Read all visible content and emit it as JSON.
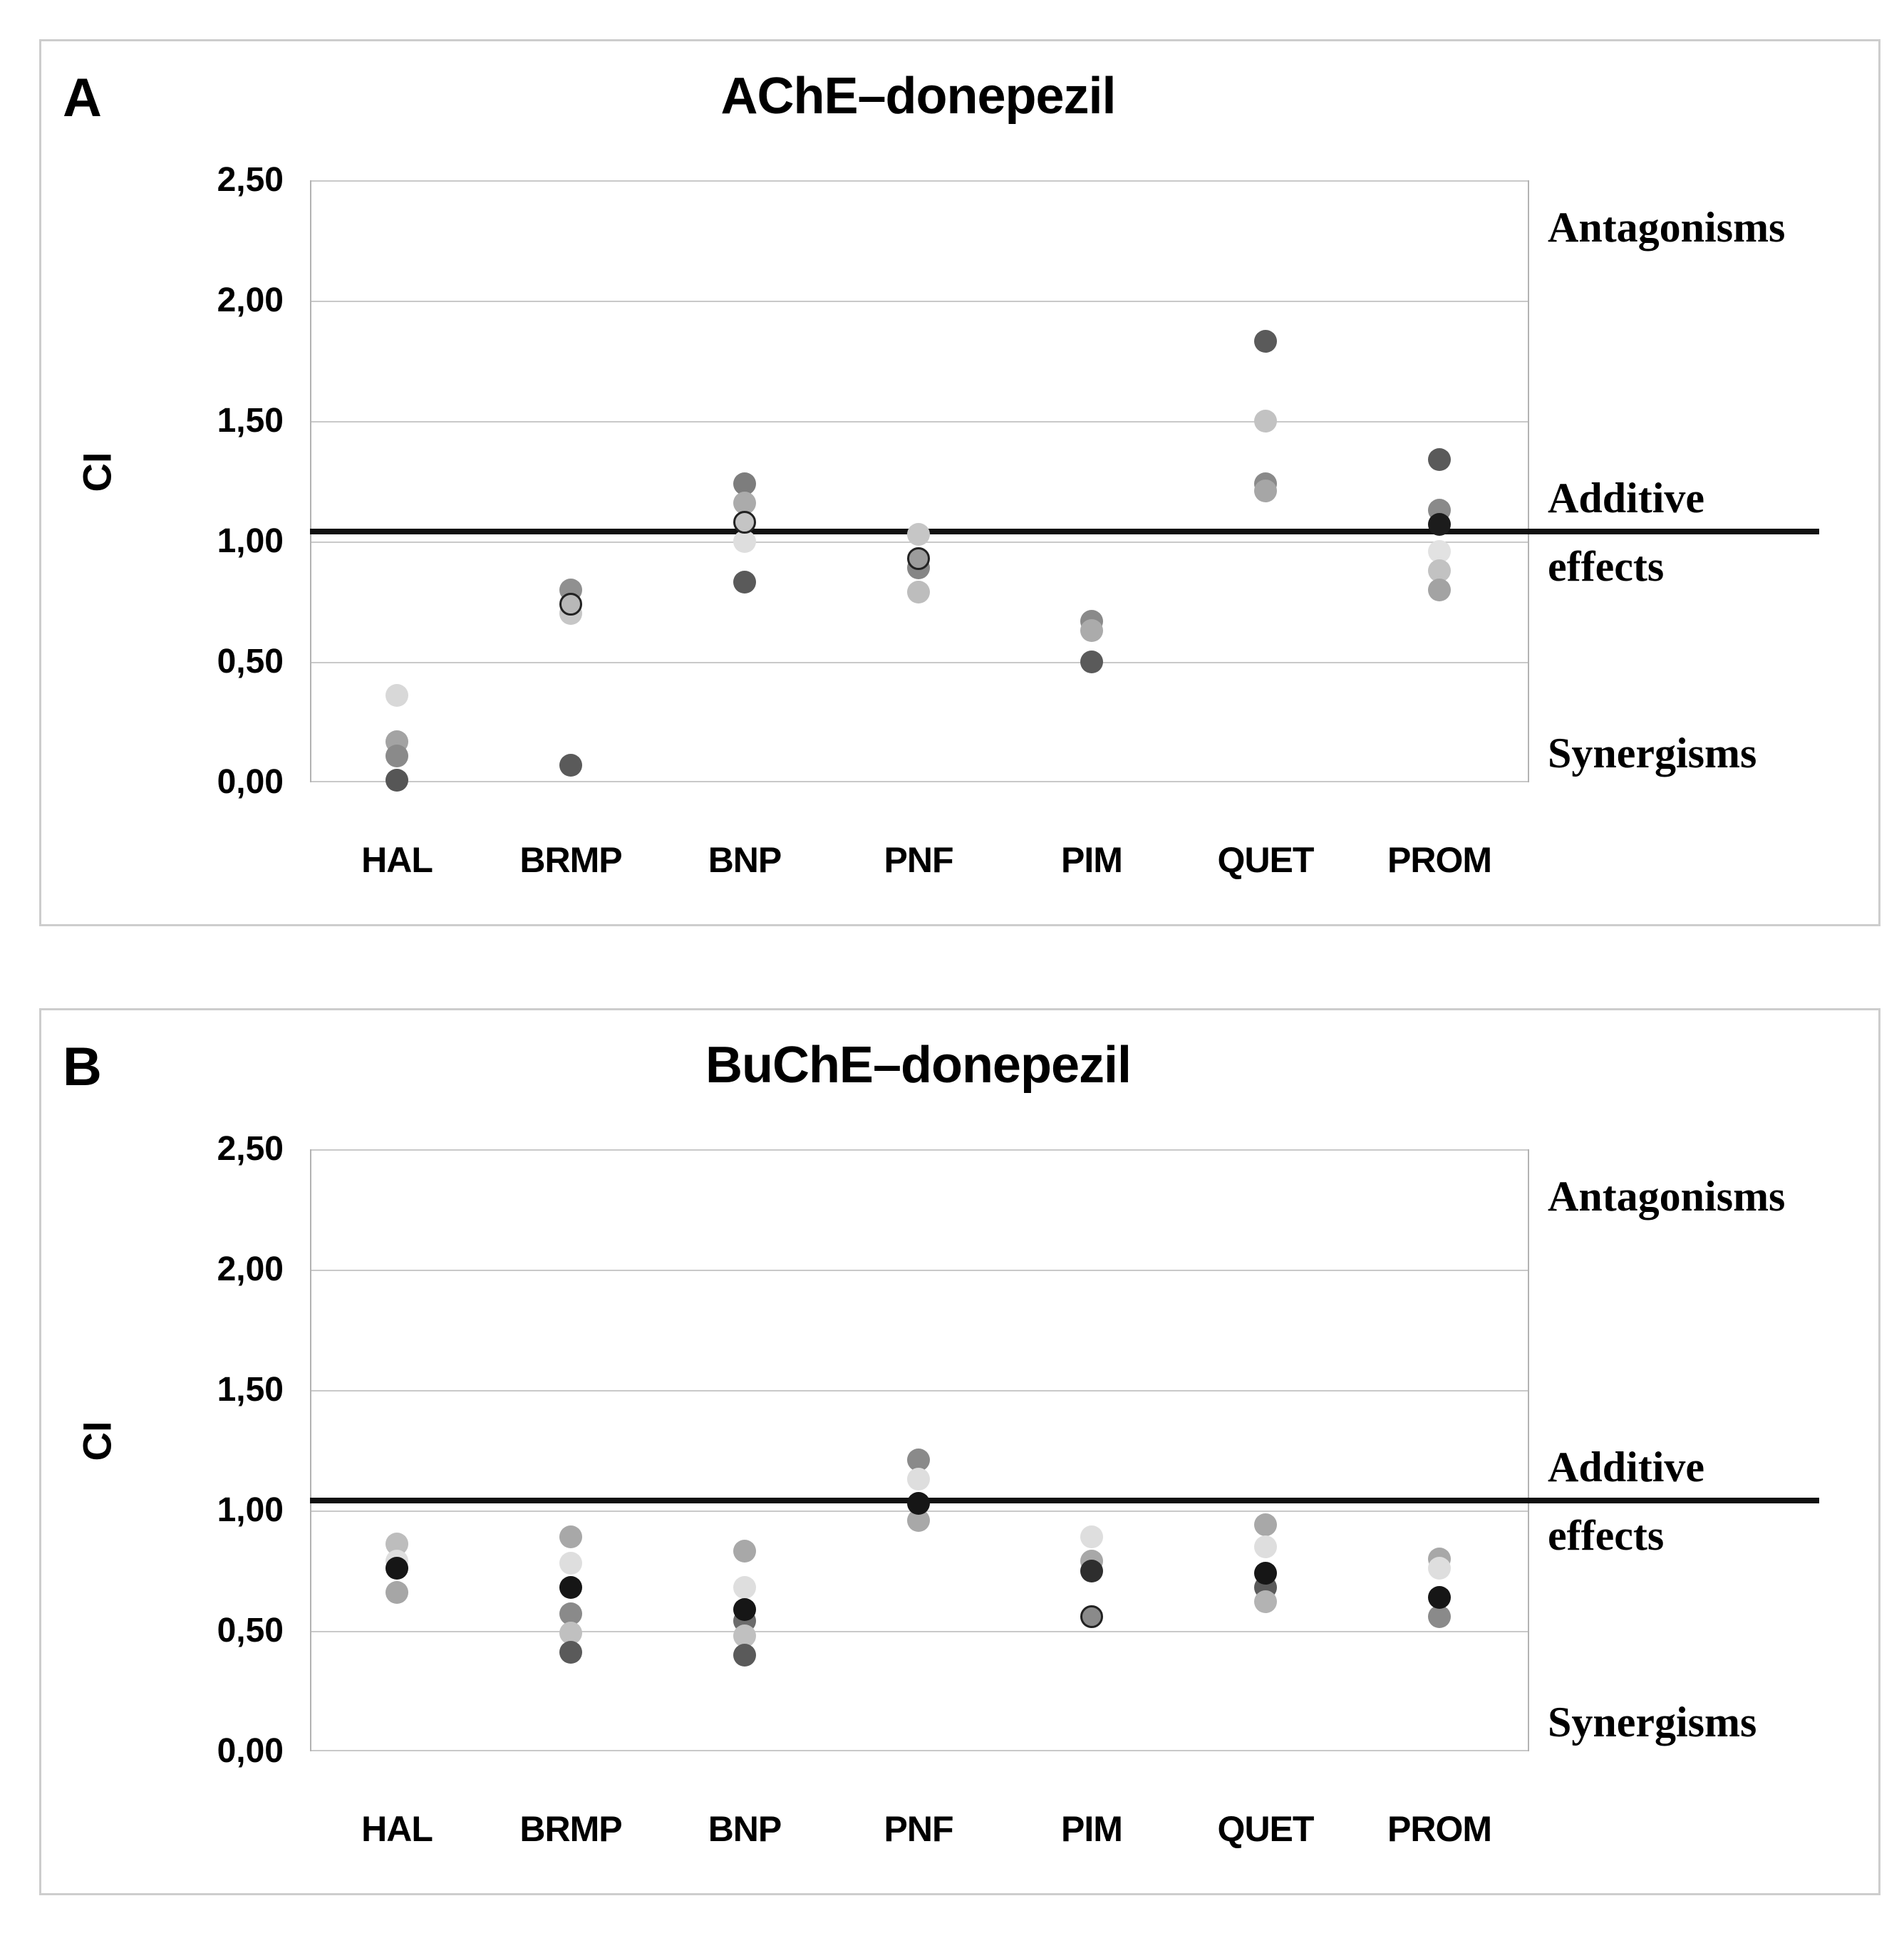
{
  "chart_data": [
    {
      "type": "scatter",
      "panel_label": "A",
      "title": "AChE–donepezil",
      "ylabel": "CI",
      "ylim": [
        0.0,
        2.5
      ],
      "y_ticks": [
        2.5,
        2.0,
        1.5,
        1.0,
        0.5,
        0.0
      ],
      "y_tick_labels": [
        "2,50",
        "2,00",
        "1,50",
        "1,00",
        "0,50",
        "0,00"
      ],
      "grid": "horizontal",
      "additive_line_ci": 1.0,
      "annotations": {
        "antagonisms": "Antagonisms",
        "additive": "Additive",
        "effects": "effects",
        "synergisms": "Synergisms"
      },
      "categories": [
        "HAL",
        "BRMP",
        "BNP",
        "PNF",
        "PIM",
        "QUET",
        "PROM"
      ],
      "points": {
        "HAL": [
          {
            "ci": 0.36,
            "color": "#d8d8d8"
          },
          {
            "ci": 0.17,
            "color": "#a3a3a3"
          },
          {
            "ci": 0.11,
            "color": "#8a8a8a"
          },
          {
            "ci": 0.01,
            "color": "#565656",
            "front": true
          }
        ],
        "BRMP": [
          {
            "ci": 0.8,
            "color": "#909090"
          },
          {
            "ci": 0.74,
            "color": "#b8b8b8",
            "ring": true,
            "front": true
          },
          {
            "ci": 0.7,
            "color": "#c6c6c6"
          },
          {
            "ci": 0.07,
            "color": "#5a5a5a"
          }
        ],
        "BNP": [
          {
            "ci": 1.24,
            "color": "#7d7d7d"
          },
          {
            "ci": 1.16,
            "color": "#ababab"
          },
          {
            "ci": 1.08,
            "color": "#c4c4c4",
            "ring": true,
            "front": true
          },
          {
            "ci": 1.0,
            "color": "#dedede"
          },
          {
            "ci": 0.83,
            "color": "#5a5a5a"
          }
        ],
        "PNF": [
          {
            "ci": 1.03,
            "color": "#c6c6c6"
          },
          {
            "ci": 0.93,
            "color": "#9c9c9c",
            "ring": true,
            "front": true
          },
          {
            "ci": 0.89,
            "color": "#868686"
          },
          {
            "ci": 0.79,
            "color": "#bdbdbd"
          }
        ],
        "PIM": [
          {
            "ci": 0.67,
            "color": "#8a8a8a"
          },
          {
            "ci": 0.63,
            "color": "#ababab"
          },
          {
            "ci": 0.5,
            "color": "#5a5a5a"
          }
        ],
        "QUET": [
          {
            "ci": 1.83,
            "color": "#5a5a5a"
          },
          {
            "ci": 1.5,
            "color": "#c2c2c2"
          },
          {
            "ci": 1.24,
            "color": "#8a8a8a"
          },
          {
            "ci": 1.21,
            "color": "#a6a6a6",
            "front": true
          }
        ],
        "PROM": [
          {
            "ci": 1.34,
            "color": "#5a5a5a"
          },
          {
            "ci": 1.13,
            "color": "#8a8a8a"
          },
          {
            "ci": 1.07,
            "color": "#1c1c1c",
            "front": true
          },
          {
            "ci": 0.96,
            "color": "#e2e2e2"
          },
          {
            "ci": 0.88,
            "color": "#c2c2c2"
          },
          {
            "ci": 0.8,
            "color": "#a3a3a3"
          }
        ]
      }
    },
    {
      "type": "scatter",
      "panel_label": "B",
      "title": "BuChE–donepezil",
      "ylabel": "CI",
      "ylim": [
        0.0,
        2.5
      ],
      "y_ticks": [
        2.5,
        2.0,
        1.5,
        1.0,
        0.5,
        0.0
      ],
      "y_tick_labels": [
        "2,50",
        "2,00",
        "1,50",
        "1,00",
        "0,50",
        "0,00"
      ],
      "grid": "horizontal",
      "additive_line_ci": 1.0,
      "annotations": {
        "antagonisms": "Antagonisms",
        "additive": "Additive",
        "effects": "effects",
        "synergisms": "Synergisms"
      },
      "categories": [
        "HAL",
        "BRMP",
        "BNP",
        "PNF",
        "PIM",
        "QUET",
        "PROM"
      ],
      "points": {
        "HAL": [
          {
            "ci": 0.86,
            "color": "#bdbdbd"
          },
          {
            "ci": 0.79,
            "color": "#dedede"
          },
          {
            "ci": 0.76,
            "color": "#161616",
            "front": true
          },
          {
            "ci": 0.66,
            "color": "#a6a6a6"
          }
        ],
        "BRMP": [
          {
            "ci": 0.89,
            "color": "#a8a8a8"
          },
          {
            "ci": 0.78,
            "color": "#dedede"
          },
          {
            "ci": 0.68,
            "color": "#161616",
            "front": true
          },
          {
            "ci": 0.57,
            "color": "#8a8a8a"
          },
          {
            "ci": 0.49,
            "color": "#c0c0c0"
          },
          {
            "ci": 0.41,
            "color": "#5a5a5a"
          }
        ],
        "BNP": [
          {
            "ci": 0.83,
            "color": "#a8a8a8"
          },
          {
            "ci": 0.68,
            "color": "#dedede"
          },
          {
            "ci": 0.59,
            "color": "#161616",
            "front": true
          },
          {
            "ci": 0.54,
            "color": "#6b6b6b"
          },
          {
            "ci": 0.48,
            "color": "#c0c0c0"
          },
          {
            "ci": 0.4,
            "color": "#5a5a5a"
          }
        ],
        "PNF": [
          {
            "ci": 1.21,
            "color": "#8a8a8a"
          },
          {
            "ci": 1.13,
            "color": "#dedede"
          },
          {
            "ci": 1.03,
            "color": "#161616",
            "front": true
          },
          {
            "ci": 0.96,
            "color": "#a8a8a8"
          }
        ],
        "PIM": [
          {
            "ci": 0.89,
            "color": "#dedede"
          },
          {
            "ci": 0.79,
            "color": "#a8a8a8"
          },
          {
            "ci": 0.75,
            "color": "#2e2e2e",
            "front": true
          },
          {
            "ci": 0.56,
            "color": "#8a8a8a",
            "ring": true
          }
        ],
        "QUET": [
          {
            "ci": 0.94,
            "color": "#a8a8a8"
          },
          {
            "ci": 0.85,
            "color": "#dedede"
          },
          {
            "ci": 0.74,
            "color": "#161616",
            "front": true
          },
          {
            "ci": 0.68,
            "color": "#5a5a5a"
          },
          {
            "ci": 0.62,
            "color": "#b3b3b3"
          }
        ],
        "PROM": [
          {
            "ci": 0.8,
            "color": "#a8a8a8"
          },
          {
            "ci": 0.76,
            "color": "#dedede"
          },
          {
            "ci": 0.64,
            "color": "#161616",
            "front": true
          },
          {
            "ci": 0.56,
            "color": "#8a8a8a"
          }
        ]
      }
    }
  ]
}
